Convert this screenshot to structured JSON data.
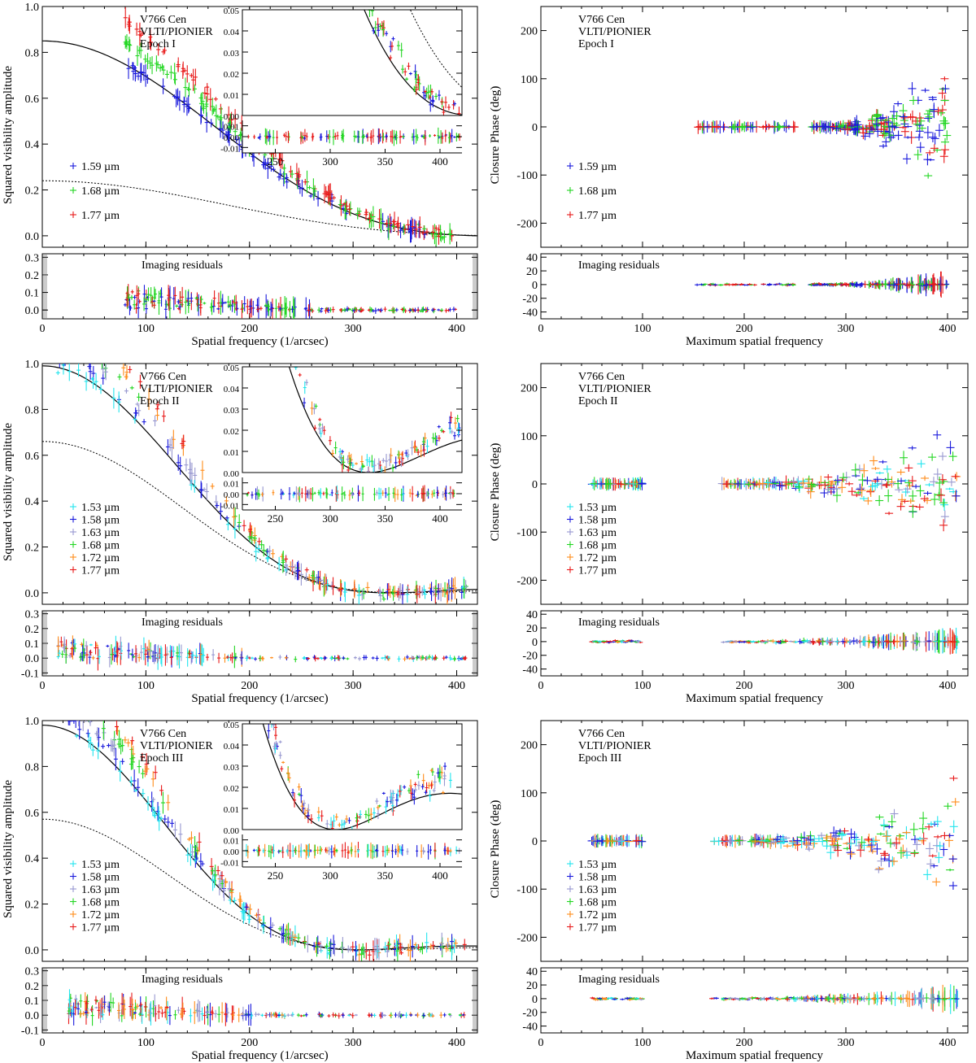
{
  "figure": {
    "object": "V766 Cen",
    "instrument": "VLTI/PIONIER",
    "residuals_label": "Imaging residuals",
    "vis_ylabel": "Squared visibility amplitude",
    "cp_ylabel": "Closure Phase (deg)",
    "vis_xlabel": "Spatial frequency (1/arcsec)",
    "cp_xlabel": "Maximum spatial frequency"
  },
  "colors": {
    "1.53": "#22e5ee",
    "1.58": "#1a1adc",
    "1.59": "#1a1adc",
    "1.63": "#9898d0",
    "1.68": "#22d622",
    "1.72": "#ff8c1a",
    "1.77": "#e81a1a"
  },
  "chart_data": [
    {
      "type": "scatter",
      "panel": "visibility",
      "epoch": "Epoch I",
      "title": "V766 Cen VLTI/PIONIER Epoch I",
      "xlabel": "Spatial frequency (1/arcsec)",
      "ylabel": "Squared visibility amplitude",
      "xlim": [
        0,
        420
      ],
      "ylim": [
        -0.05,
        1.0
      ],
      "xticks": [
        "0",
        "100",
        "200",
        "300",
        "400"
      ],
      "yticks": [
        "0.0",
        "0.2",
        "0.4",
        "0.6",
        "0.8",
        "1.0"
      ],
      "legend": [
        "1.59 µm",
        "1.68 µm",
        "1.77 µm"
      ],
      "data_range": [
        80,
        400
      ],
      "model_solid": {
        "v0": 0.85,
        "x_first_null": 430
      },
      "model_dotted": {
        "v0": 0.24,
        "x_first_null": 460
      },
      "inset": {
        "xlim": [
          220,
          420
        ],
        "ylim": [
          0,
          0.05
        ],
        "xticks": [
          "250",
          "300",
          "350",
          "400"
        ],
        "yticks": [
          "0.00",
          "0.01",
          "0.02",
          "0.03",
          "0.04",
          "0.05"
        ],
        "res_yticks": [
          "0.01",
          "0.00",
          "-0.01"
        ]
      },
      "residuals": {
        "label": "Imaging residuals",
        "ylim": [
          -0.05,
          0.32
        ],
        "yticks": [
          "0.0",
          "0.1",
          "0.2",
          "0.3"
        ]
      }
    },
    {
      "type": "scatter",
      "panel": "closure_phase",
      "epoch": "Epoch I",
      "title": "V766 Cen VLTI/PIONIER Epoch I",
      "xlabel": "Maximum spatial frequency",
      "ylabel": "Closure Phase (deg)",
      "xlim": [
        0,
        420
      ],
      "ylim": [
        -250,
        250
      ],
      "xticks": [
        "0",
        "100",
        "200",
        "300",
        "400"
      ],
      "yticks": [
        "-200",
        "-100",
        "0",
        "100",
        "200"
      ],
      "legend": [
        "1.59 µm",
        "1.68 µm",
        "1.77 µm"
      ],
      "clusters": [
        [
          150,
          250
        ],
        [
          265,
          400
        ]
      ],
      "residuals": {
        "label": "Imaging residuals",
        "ylim": [
          -50,
          45
        ],
        "yticks": [
          "40",
          "20",
          "0",
          "-20",
          "-40"
        ]
      }
    },
    {
      "type": "scatter",
      "panel": "visibility",
      "epoch": "Epoch II",
      "title": "V766 Cen VLTI/PIONIER Epoch II",
      "xlabel": "Spatial frequency (1/arcsec)",
      "ylabel": "Squared visibility amplitude",
      "xlim": [
        0,
        420
      ],
      "ylim": [
        -0.05,
        1.0
      ],
      "xticks": [
        "0",
        "100",
        "200",
        "300",
        "400"
      ],
      "yticks": [
        "0.0",
        "0.2",
        "0.4",
        "0.6",
        "0.8",
        "1.0"
      ],
      "legend": [
        "1.53 µm",
        "1.58 µm",
        "1.63 µm",
        "1.68 µm",
        "1.72 µm",
        "1.77 µm"
      ],
      "data_range": [
        15,
        410
      ],
      "model_solid": {
        "v0": 0.99,
        "x_first_null": 335
      },
      "model_dotted": {
        "v0": 0.66,
        "x_first_null": 350
      },
      "inset": {
        "xlim": [
          220,
          420
        ],
        "ylim": [
          0,
          0.05
        ],
        "xticks": [
          "250",
          "300",
          "350",
          "400"
        ],
        "yticks": [
          "0.00",
          "0.01",
          "0.02",
          "0.03",
          "0.04",
          "0.05"
        ],
        "res_yticks": [
          "0.01",
          "0.00",
          "-0.01"
        ]
      },
      "residuals": {
        "label": "Imaging residuals",
        "ylim": [
          -0.12,
          0.32
        ],
        "yticks": [
          "-0.1",
          "0.0",
          "0.1",
          "0.2",
          "0.3"
        ]
      }
    },
    {
      "type": "scatter",
      "panel": "closure_phase",
      "epoch": "Epoch II",
      "title": "V766 Cen VLTI/PIONIER Epoch II",
      "xlabel": "Maximum spatial frequency",
      "ylabel": "Closure Phase (deg)",
      "xlim": [
        0,
        420
      ],
      "ylim": [
        -250,
        250
      ],
      "xticks": [
        "0",
        "100",
        "200",
        "300",
        "400"
      ],
      "yticks": [
        "-200",
        "-100",
        "0",
        "100",
        "200"
      ],
      "legend": [
        "1.53 µm",
        "1.58 µm",
        "1.63 µm",
        "1.68 µm",
        "1.72 µm",
        "1.77 µm"
      ],
      "clusters": [
        [
          50,
          100
        ],
        [
          178,
          410
        ]
      ],
      "residuals": {
        "label": "Imaging residuals",
        "ylim": [
          -50,
          45
        ],
        "yticks": [
          "40",
          "20",
          "0",
          "-20",
          "-40"
        ]
      }
    },
    {
      "type": "scatter",
      "panel": "visibility",
      "epoch": "Epoch III",
      "title": "V766 Cen VLTI/PIONIER Epoch III",
      "xlabel": "Spatial frequency (1/arcsec)",
      "ylabel": "Squared visibility amplitude",
      "xlim": [
        0,
        420
      ],
      "ylim": [
        -0.05,
        1.0
      ],
      "xticks": [
        "0",
        "100",
        "200",
        "300",
        "400"
      ],
      "yticks": [
        "0.0",
        "0.2",
        "0.4",
        "0.6",
        "0.8",
        "1.0"
      ],
      "legend": [
        "1.53 µm",
        "1.58 µm",
        "1.63 µm",
        "1.68 µm",
        "1.72 µm",
        "1.77 µm"
      ],
      "data_range": [
        25,
        410
      ],
      "model_solid": {
        "v0": 0.98,
        "x_first_null": 305
      },
      "model_dotted": {
        "v0": 0.57,
        "x_first_null": 320
      },
      "inset": {
        "xlim": [
          220,
          420
        ],
        "ylim": [
          0,
          0.05
        ],
        "xticks": [
          "250",
          "300",
          "350",
          "400"
        ],
        "yticks": [
          "0.00",
          "0.01",
          "0.02",
          "0.03",
          "0.04",
          "0.05"
        ],
        "res_yticks": [
          "0.01",
          "0.00",
          "-0.01"
        ]
      },
      "residuals": {
        "label": "Imaging residuals",
        "ylim": [
          -0.12,
          0.32
        ],
        "yticks": [
          "-0.1",
          "0.0",
          "0.1",
          "0.2",
          "0.3"
        ]
      }
    },
    {
      "type": "scatter",
      "panel": "closure_phase",
      "epoch": "Epoch III",
      "title": "V766 Cen VLTI/PIONIER Epoch III",
      "xlabel": "Maximum spatial frequency",
      "ylabel": "Closure Phase (deg)",
      "xlim": [
        0,
        420
      ],
      "ylim": [
        -250,
        250
      ],
      "xticks": [
        "0",
        "100",
        "200",
        "300",
        "400"
      ],
      "yticks": [
        "-200",
        "-100",
        "0",
        "100",
        "200"
      ],
      "legend": [
        "1.53 µm",
        "1.58 µm",
        "1.63 µm",
        "1.68 µm",
        "1.72 µm",
        "1.77 µm"
      ],
      "clusters": [
        [
          50,
          100
        ],
        [
          168,
          410
        ]
      ],
      "residuals": {
        "label": "Imaging residuals",
        "ylim": [
          -50,
          45
        ],
        "yticks": [
          "40",
          "20",
          "0",
          "-20",
          "-40"
        ]
      }
    }
  ]
}
